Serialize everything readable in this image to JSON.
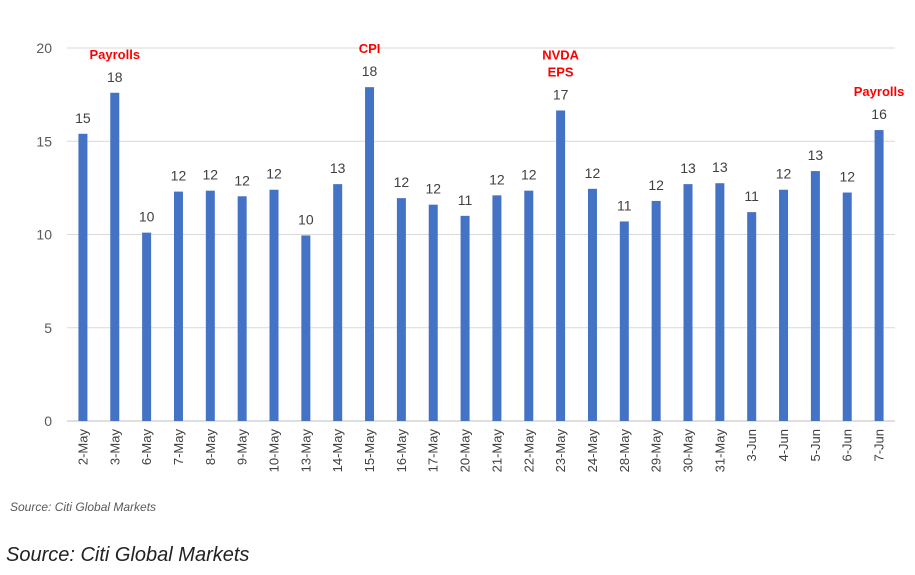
{
  "chart_data": {
    "type": "bar",
    "categories": [
      "2-May",
      "3-May",
      "6-May",
      "7-May",
      "8-May",
      "9-May",
      "10-May",
      "13-May",
      "14-May",
      "15-May",
      "16-May",
      "17-May",
      "20-May",
      "21-May",
      "22-May",
      "23-May",
      "24-May",
      "28-May",
      "29-May",
      "30-May",
      "31-May",
      "3-Jun",
      "4-Jun",
      "5-Jun",
      "6-Jun",
      "7-Jun"
    ],
    "values": [
      15.4,
      17.6,
      10.1,
      12.3,
      12.35,
      12.05,
      12.4,
      9.95,
      12.7,
      17.9,
      11.95,
      11.6,
      11.0,
      12.1,
      12.35,
      16.65,
      12.45,
      10.7,
      11.8,
      12.7,
      12.75,
      11.2,
      12.4,
      13.4,
      12.25,
      15.6
    ],
    "data_labels": [
      "15",
      "18",
      "10",
      "12",
      "12",
      "12",
      "12",
      "10",
      "13",
      "18",
      "12",
      "12",
      "11",
      "12",
      "12",
      "17",
      "12",
      "11",
      "12",
      "13",
      "13",
      "11",
      "12",
      "13",
      "12",
      "16"
    ],
    "annotations": [
      {
        "category": "3-May",
        "lines": [
          "Payrolls"
        ]
      },
      {
        "category": "15-May",
        "lines": [
          "CPI"
        ]
      },
      {
        "category": "23-May",
        "lines": [
          "NVDA",
          "EPS"
        ]
      },
      {
        "category": "7-Jun",
        "lines": [
          "Payrolls"
        ]
      }
    ],
    "yticks": [
      0,
      5,
      10,
      15,
      20
    ],
    "ylim": [
      0,
      20
    ],
    "grid": true,
    "legend": "none",
    "title": "",
    "xlabel": "",
    "ylabel": "",
    "bar_color": "#4472c4",
    "grid_color": "#d9d9d9",
    "annotation_color": "#ff0000"
  },
  "source_note_chart": "Source: Citi Global Markets",
  "source_note_caption": "Source: Citi Global Markets"
}
